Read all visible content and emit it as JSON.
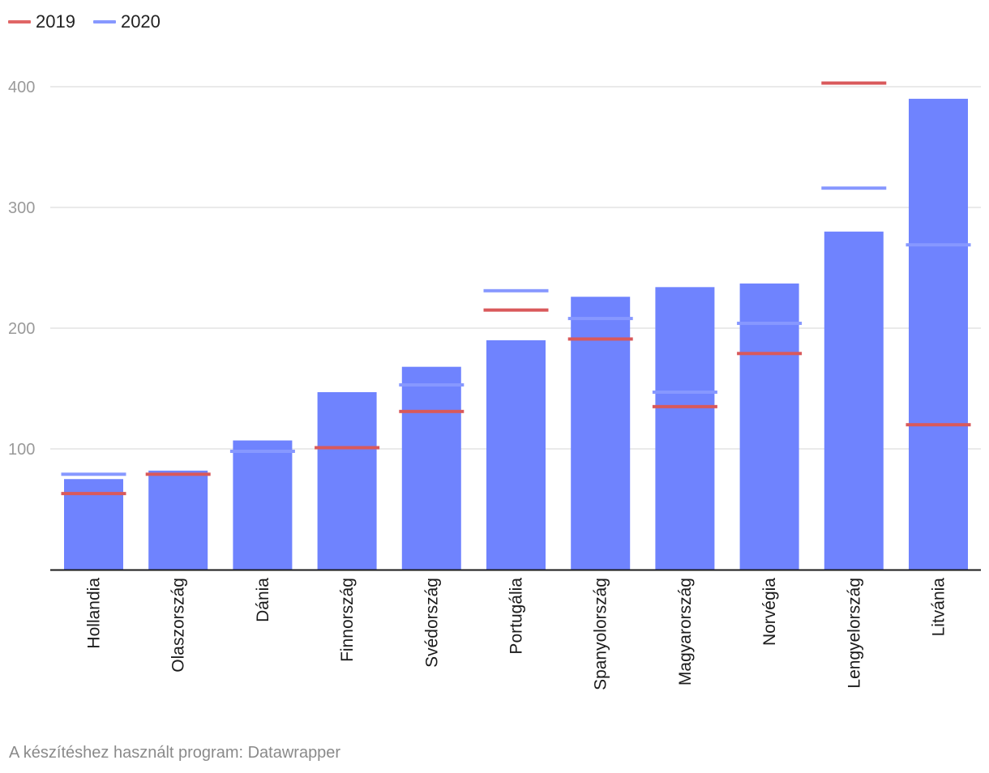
{
  "legend": [
    {
      "name": "2019",
      "color": "#e06666"
    },
    {
      "name": "2020",
      "color": "#8798ff"
    }
  ],
  "source": "A készítéshez használt program: Datawrapper",
  "colors": {
    "bar": "#6f83fe",
    "marker_2019": "#d9595b",
    "marker_2020": "#8798ff",
    "grid": "#e3e3e3",
    "axis": "#1a1a1a"
  },
  "chart_data": {
    "type": "bar",
    "title": "",
    "xlabel": "",
    "ylabel": "",
    "ylim": [
      0,
      400
    ],
    "yticks": [
      100,
      200,
      300,
      400
    ],
    "grid": true,
    "legend_position": "top-left",
    "categories": [
      "Hollandia",
      "Olaszország",
      "Dánia",
      "Finnország",
      "Svédország",
      "Portugália",
      "Spanyolország",
      "Magyarország",
      "Norvégia",
      "Lengyelország",
      "Litvánia"
    ],
    "bars": [
      75,
      82,
      107,
      147,
      168,
      190,
      226,
      234,
      237,
      280,
      390
    ],
    "series": [
      {
        "name": "2019",
        "values": [
          63,
          79,
          null,
          101,
          131,
          215,
          191,
          135,
          179,
          403,
          120
        ]
      },
      {
        "name": "2020",
        "values": [
          79,
          null,
          98,
          null,
          153,
          231,
          208,
          147,
          204,
          316,
          269
        ]
      }
    ]
  }
}
